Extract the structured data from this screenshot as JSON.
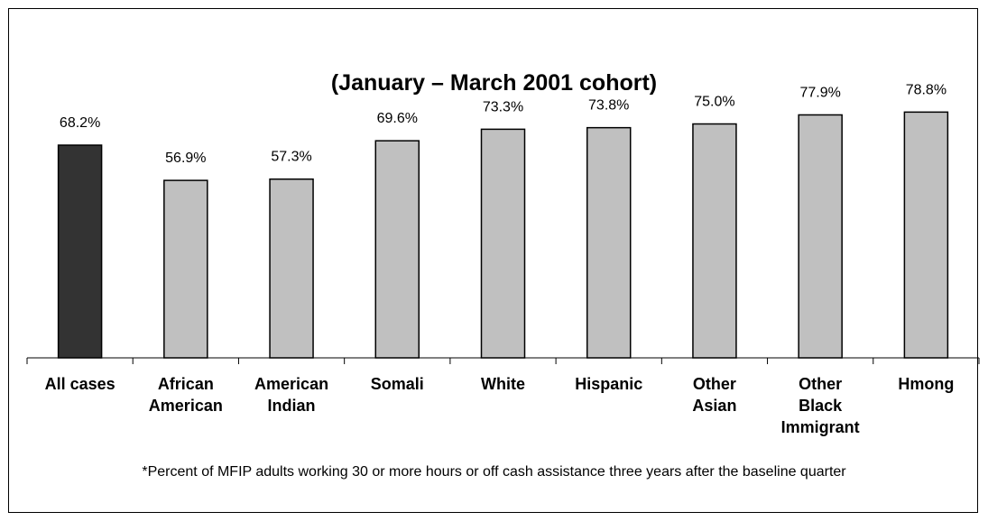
{
  "chart_data": {
    "type": "bar",
    "title": "(January – March 2001 cohort)",
    "categories": [
      [
        "All cases"
      ],
      [
        "African",
        "American"
      ],
      [
        "American",
        "Indian"
      ],
      [
        "Somali"
      ],
      [
        "White"
      ],
      [
        "Hispanic"
      ],
      [
        "Other",
        "Asian"
      ],
      [
        "Other",
        "Black",
        "Immigrant"
      ],
      [
        "Hmong"
      ]
    ],
    "values": [
      68.2,
      56.9,
      57.3,
      69.6,
      73.3,
      73.8,
      75.0,
      77.9,
      78.8
    ],
    "value_labels": [
      "68.2%",
      "56.9%",
      "57.3%",
      "69.6%",
      "73.3%",
      "73.8%",
      "75.0%",
      "77.9%",
      "78.8%"
    ],
    "ylim": [
      0,
      100
    ],
    "colors": {
      "highlight": "#333333",
      "default": "#c0c0c0",
      "edge": "#000000"
    },
    "highlight_index": 0,
    "grid": false,
    "footnote": "*Percent of MFIP adults working 30 or more hours or off cash assistance three years after the baseline quarter"
  }
}
